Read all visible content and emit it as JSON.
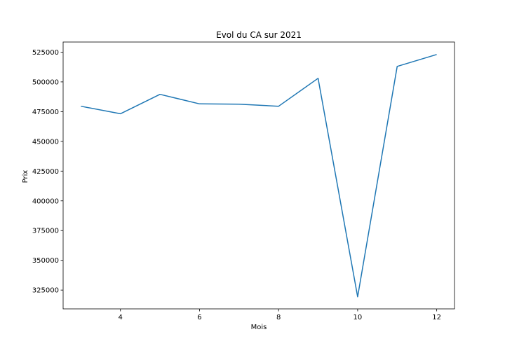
{
  "chart_data": {
    "type": "line",
    "title": "Evol du CA sur 2021",
    "xlabel": "Mois",
    "ylabel": "Prix",
    "xlim": [
      2.55,
      12.45
    ],
    "ylim": [
      309200,
      533500
    ],
    "xticks": [
      4,
      6,
      8,
      10,
      12
    ],
    "xtick_labels": [
      "4",
      "6",
      "8",
      "10",
      "12"
    ],
    "yticks": [
      325000,
      350000,
      375000,
      400000,
      425000,
      450000,
      475000,
      500000,
      525000
    ],
    "ytick_labels": [
      "325000",
      "350000",
      "375000",
      "400000",
      "425000",
      "450000",
      "475000",
      "500000",
      "525000"
    ],
    "grid": false,
    "series": [
      {
        "color": "#1f77b4",
        "x": [
          3,
          4,
          5,
          6,
          7,
          8,
          9,
          10,
          11,
          12
        ],
        "y": [
          479500,
          473200,
          489500,
          481500,
          481200,
          479500,
          503000,
          319400,
          513000,
          523000
        ]
      }
    ]
  }
}
